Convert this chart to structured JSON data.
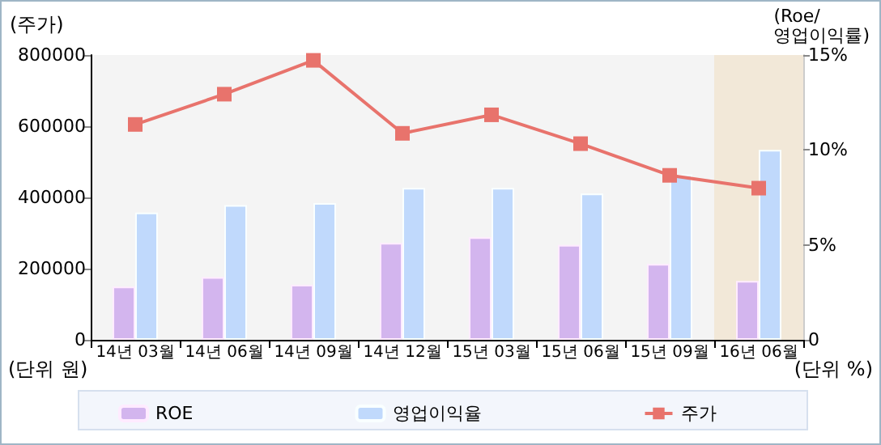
{
  "chart_data": {
    "type": "bar",
    "ylabel": "(주가)",
    "y2label": "(Roe/\n영업이익률)",
    "annotations": [
      "(단위 원)",
      "(단위 %)"
    ],
    "categories": [
      "14년 03월",
      "14년 06월",
      "14년 09월",
      "14년 12월",
      "15년 03월",
      "15년 06월",
      "15년 09월",
      "16년 06월"
    ],
    "series": [
      {
        "name": "ROE",
        "axis": "y2",
        "color": "#d3b5ee",
        "values": [
          2.8,
          3.3,
          2.9,
          5.1,
          5.4,
          5.0,
          4.0,
          3.1
        ]
      },
      {
        "name": "영업이익율",
        "axis": "y2",
        "color": "#c0d9fc",
        "values": [
          6.7,
          7.1,
          7.2,
          8.0,
          8.0,
          7.7,
          8.7,
          10.0
        ]
      },
      {
        "name": "주가",
        "type": "line",
        "color": "#e8736c",
        "marker": "square",
        "values": [
          605000,
          690000,
          785000,
          580000,
          632000,
          551000,
          462000,
          426000
        ]
      }
    ],
    "ylim": [
      0,
      800000
    ],
    "yticks": [
      0,
      200000,
      400000,
      600000,
      800000
    ],
    "y2lim": [
      0,
      15
    ],
    "y2ticks": [
      {
        "value": 0,
        "label": "0"
      },
      {
        "value": 5,
        "label": "5%"
      },
      {
        "value": 10,
        "label": "10%"
      },
      {
        "value": 15,
        "label": "15%"
      }
    ],
    "bands": [
      {
        "axis": "x",
        "from": "16년 06월",
        "to": "16년 06월",
        "color": "#f2e8d8"
      }
    ],
    "grid": false,
    "legend": "bottom"
  }
}
